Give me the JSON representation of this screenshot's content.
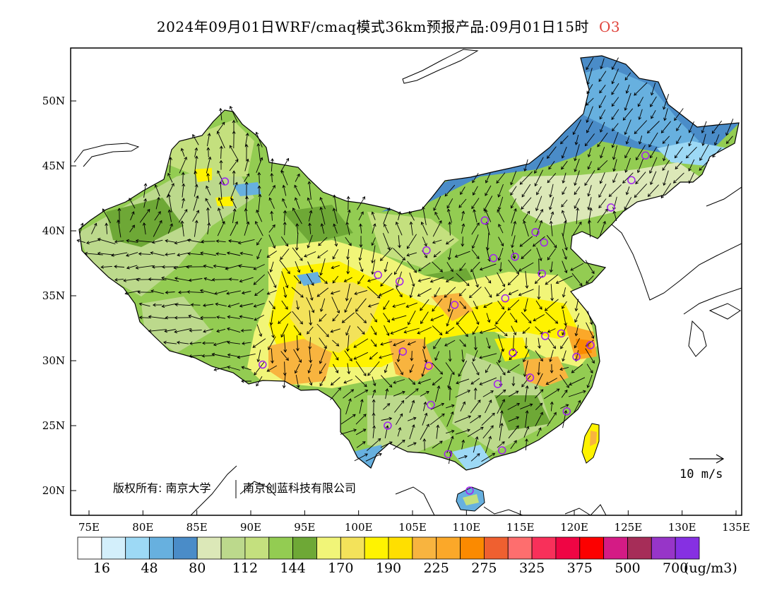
{
  "header": {
    "title": "2024年09月01日WRF/cmaq模式36km预报产品:09月01日15时",
    "pollutant": "O3"
  },
  "map": {
    "lon_ticks": [
      "75E",
      "80E",
      "85E",
      "90E",
      "95E",
      "100E",
      "105E",
      "110E",
      "115E",
      "120E",
      "125E",
      "130E",
      "135E"
    ],
    "lat_ticks": [
      "50N",
      "45N",
      "40N",
      "35N",
      "30N",
      "25N",
      "20N"
    ],
    "copyright": "版权所有: 南京大学",
    "copyright_company": "南京创蓝科技有限公司",
    "wind_reference": "10 m/s"
  },
  "colorbar": {
    "colors": [
      "#ffffff",
      "#d3effb",
      "#9dd9f5",
      "#67b0df",
      "#4a8cc8",
      "#dce8b8",
      "#bcd98c",
      "#c4e07e",
      "#93cc52",
      "#6ea836",
      "#f1f578",
      "#f3e25a",
      "#fff300",
      "#ffdf00",
      "#f8b43f",
      "#fba829",
      "#fb8a00",
      "#ef6030",
      "#fe6e6e",
      "#f8305a",
      "#ef0544",
      "#fc0000",
      "#d41b85",
      "#a62d58",
      "#9735c8",
      "#8630e2"
    ],
    "labels": [
      "16",
      "48",
      "80",
      "112",
      "144",
      "170",
      "190",
      "225",
      "275",
      "325",
      "375",
      "500",
      "700"
    ],
    "unit": "(ug/m3)"
  },
  "stations": [
    {
      "lon": 87.6,
      "lat": 43.8
    },
    {
      "lon": 91.1,
      "lat": 29.7
    },
    {
      "lon": 101.8,
      "lat": 36.6
    },
    {
      "lon": 103.8,
      "lat": 36.1
    },
    {
      "lon": 106.3,
      "lat": 38.5
    },
    {
      "lon": 111.7,
      "lat": 40.8
    },
    {
      "lon": 112.5,
      "lat": 37.9
    },
    {
      "lon": 114.5,
      "lat": 38.0
    },
    {
      "lon": 116.4,
      "lat": 39.9
    },
    {
      "lon": 117.2,
      "lat": 39.1
    },
    {
      "lon": 117.0,
      "lat": 36.7
    },
    {
      "lon": 113.6,
      "lat": 34.8
    },
    {
      "lon": 108.9,
      "lat": 34.3
    },
    {
      "lon": 104.1,
      "lat": 30.7
    },
    {
      "lon": 106.5,
      "lat": 29.6
    },
    {
      "lon": 106.7,
      "lat": 26.6
    },
    {
      "lon": 102.7,
      "lat": 25.0
    },
    {
      "lon": 108.3,
      "lat": 22.8
    },
    {
      "lon": 113.3,
      "lat": 23.1
    },
    {
      "lon": 110.3,
      "lat": 20.0
    },
    {
      "lon": 119.3,
      "lat": 26.1
    },
    {
      "lon": 115.9,
      "lat": 28.7
    },
    {
      "lon": 112.9,
      "lat": 28.2
    },
    {
      "lon": 114.3,
      "lat": 30.6
    },
    {
      "lon": 117.3,
      "lat": 31.9
    },
    {
      "lon": 118.8,
      "lat": 32.1
    },
    {
      "lon": 120.2,
      "lat": 30.3
    },
    {
      "lon": 121.5,
      "lat": 31.2
    },
    {
      "lon": 123.4,
      "lat": 41.8
    },
    {
      "lon": 125.3,
      "lat": 43.9
    },
    {
      "lon": 126.6,
      "lat": 45.8
    }
  ]
}
